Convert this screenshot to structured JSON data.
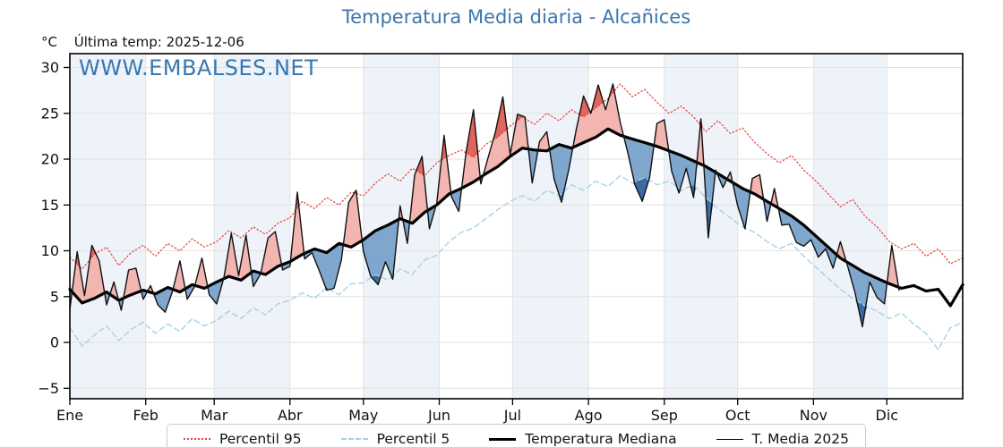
{
  "header": {
    "title": "Temperatura Media diaria - Alcañices",
    "units_label": "°C",
    "last_temp_label": "Última temp: 2025-12-06",
    "watermark": "WWW.EMBALSES.NET"
  },
  "legend": {
    "items": [
      {
        "label": "Percentil 95",
        "style": "dotted-red"
      },
      {
        "label": "Percentil 5",
        "style": "dashed-lightblue"
      },
      {
        "label": "Temperatura Mediana",
        "style": "thick-black"
      },
      {
        "label": "T. Media 2025",
        "style": "thin-black"
      }
    ]
  },
  "chart_data": {
    "type": "line",
    "title": "Temperatura Media diaria - Alcañices",
    "ylabel": "°C",
    "ylim": [
      -6.1,
      31.5
    ],
    "y_ticks": [
      -5,
      0,
      5,
      10,
      15,
      20,
      25,
      30
    ],
    "x_ticks": [
      "Ene",
      "Feb",
      "Mar",
      "Abr",
      "May",
      "Jun",
      "Jul",
      "Ago",
      "Sep",
      "Oct",
      "Nov",
      "Dic"
    ],
    "month_start_days": [
      0,
      31,
      59,
      90,
      120,
      151,
      181,
      212,
      243,
      273,
      304,
      334,
      365
    ],
    "grid": true,
    "legend_position": "bottom-center",
    "colors": {
      "band": "#eef3f9",
      "grid": "#e2e2e2",
      "frame": "#000000",
      "p95_line": "#e8433e",
      "p5_line": "#a9d0e6",
      "median_line": "#000000",
      "t2025_line": "#111111",
      "fill_above_median": "#f2b5b0",
      "fill_above_p95": "#e0655e",
      "fill_below_median": "#7fa6cc",
      "fill_below_p5": "#3a6da3"
    },
    "series": [
      {
        "name": "Percentil 95",
        "role": "p95",
        "day_step": 5,
        "start_day": 0,
        "values": [
          9.3,
          8.0,
          9.6,
          10.4,
          8.4,
          9.8,
          10.6,
          9.4,
          10.8,
          10.0,
          11.3,
          10.4,
          11.0,
          12.2,
          11.4,
          12.6,
          11.8,
          13.0,
          13.6,
          15.4,
          14.6,
          15.8,
          15.0,
          16.4,
          16.0,
          17.4,
          18.4,
          17.6,
          19.0,
          18.2,
          19.6,
          20.4,
          21.0,
          20.2,
          21.6,
          22.4,
          23.6,
          24.6,
          23.8,
          25.0,
          24.2,
          25.4,
          24.6,
          25.6,
          26.6,
          28.2,
          26.8,
          27.6,
          26.2,
          25.0,
          25.8,
          24.6,
          23.0,
          24.2,
          22.8,
          23.4,
          21.8,
          20.6,
          19.6,
          20.4,
          18.8,
          17.6,
          16.2,
          14.8,
          15.6,
          13.8,
          12.6,
          11.0,
          10.2,
          10.8,
          9.4,
          10.2,
          8.6,
          9.2
        ]
      },
      {
        "name": "Percentil 5",
        "role": "p5",
        "day_step": 5,
        "start_day": 0,
        "values": [
          1.6,
          -0.4,
          0.8,
          1.8,
          0.2,
          1.4,
          2.2,
          1.0,
          2.0,
          1.2,
          2.6,
          1.8,
          2.4,
          3.4,
          2.6,
          3.8,
          3.0,
          4.2,
          4.6,
          5.4,
          4.8,
          6.0,
          5.2,
          6.4,
          6.5,
          7.4,
          6.8,
          8.0,
          7.4,
          9.0,
          9.5,
          11.0,
          12.0,
          12.5,
          13.5,
          14.5,
          15.4,
          16.0,
          15.4,
          16.6,
          16.0,
          17.2,
          16.6,
          17.6,
          17.0,
          18.2,
          17.4,
          18.0,
          17.2,
          17.6,
          16.6,
          17.2,
          15.8,
          14.6,
          13.6,
          12.6,
          12.0,
          11.0,
          10.2,
          10.8,
          9.4,
          8.2,
          7.0,
          5.8,
          4.8,
          4.0,
          3.4,
          2.6,
          3.2,
          2.0,
          1.0,
          -0.8,
          1.6,
          2.2
        ]
      },
      {
        "name": "Temperatura Mediana",
        "role": "median",
        "day_step": 5,
        "start_day": 0,
        "values": [
          5.8,
          4.3,
          4.8,
          5.5,
          4.6,
          5.2,
          5.7,
          5.3,
          6.0,
          5.5,
          6.3,
          5.9,
          6.6,
          7.2,
          6.8,
          7.8,
          7.4,
          8.3,
          8.8,
          9.6,
          10.2,
          9.8,
          10.8,
          10.4,
          11.2,
          12.2,
          12.8,
          13.5,
          13.0,
          14.2,
          15.0,
          16.2,
          16.8,
          17.5,
          18.4,
          19.2,
          20.3,
          21.2,
          21.0,
          20.9,
          21.6,
          21.2,
          21.8,
          22.4,
          23.3,
          22.6,
          22.2,
          21.8,
          21.4,
          20.9,
          20.4,
          19.8,
          19.2,
          18.4,
          17.6,
          16.8,
          16.2,
          15.4,
          14.6,
          13.8,
          12.8,
          11.6,
          10.4,
          9.2,
          8.4,
          7.6,
          7.0,
          6.4,
          5.9,
          6.2,
          5.6,
          5.8,
          4.0,
          6.3
        ]
      },
      {
        "name": "T. Media 2025",
        "role": "t2025",
        "day_step": 3,
        "start_day": 0,
        "values": [
          3.6,
          9.9,
          5.1,
          10.6,
          8.9,
          4.1,
          6.6,
          3.5,
          7.9,
          8.1,
          4.7,
          6.2,
          4.1,
          3.3,
          5.6,
          8.9,
          4.7,
          6.1,
          9.2,
          5.2,
          4.2,
          7.1,
          11.9,
          7.3,
          11.7,
          6.1,
          7.5,
          11.4,
          12.1,
          7.9,
          8.3,
          16.4,
          9.1,
          9.8,
          7.8,
          5.7,
          5.9,
          9.0,
          15.3,
          16.6,
          9.9,
          7.2,
          6.3,
          8.8,
          6.9,
          14.9,
          10.8,
          18.3,
          20.3,
          12.4,
          15.2,
          22.6,
          15.9,
          14.3,
          20.8,
          25.4,
          17.3,
          20.2,
          23.0,
          26.8,
          20.5,
          24.9,
          24.6,
          17.4,
          21.9,
          23.0,
          17.8,
          15.3,
          18.9,
          23.2,
          26.9,
          25.0,
          28.1,
          25.4,
          28.2,
          24.0,
          20.8,
          17.2,
          15.4,
          18.0,
          23.9,
          24.3,
          18.7,
          16.3,
          19.0,
          15.8,
          24.4,
          11.4,
          18.8,
          16.9,
          18.6,
          14.9,
          12.4,
          17.9,
          18.3,
          13.2,
          16.8,
          12.8,
          12.9,
          10.9,
          10.5,
          11.2,
          9.3,
          10.2,
          8.1,
          11.0,
          8.3,
          5.4,
          1.7,
          6.6,
          4.9,
          4.2,
          10.6,
          5.7
        ]
      }
    ]
  }
}
